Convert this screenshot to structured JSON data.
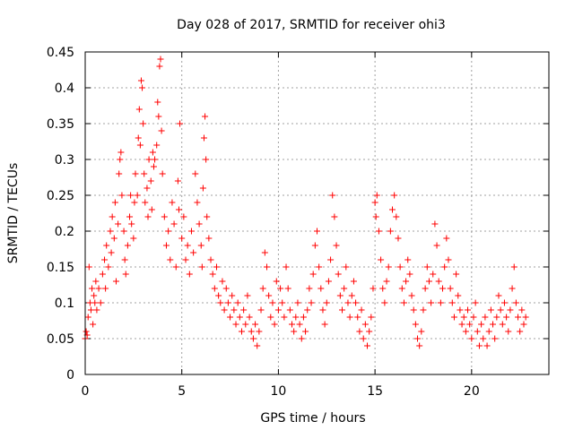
{
  "chart_data": {
    "type": "scatter",
    "title": "Day 028 of 2017, SRMTID for receiver ohi3",
    "xlabel": "GPS time / hours",
    "ylabel": "SRMTID / TECUs",
    "xlim": [
      0,
      24
    ],
    "ylim": [
      0,
      0.45
    ],
    "xticks": [
      0,
      5,
      10,
      15,
      20
    ],
    "yticks": [
      0,
      0.05,
      0.1,
      0.15,
      0.2,
      0.25,
      0.3,
      0.35,
      0.4,
      0.45
    ],
    "xtick_labels": [
      "0",
      "5",
      "10",
      "15",
      "20"
    ],
    "ytick_labels": [
      "0",
      "0.05",
      "0.1",
      "0.15",
      "0.2",
      "0.25",
      "0.3",
      "0.35",
      "0.4",
      "0.45"
    ],
    "grid": true,
    "marker": "plus",
    "color": "#ff0000",
    "series": [
      {
        "name": "SRMTID",
        "points": [
          [
            0.0,
            0.05
          ],
          [
            0.05,
            0.06
          ],
          [
            0.1,
            0.055
          ],
          [
            0.15,
            0.08
          ],
          [
            0.2,
            0.15
          ],
          [
            0.25,
            0.1
          ],
          [
            0.3,
            0.09
          ],
          [
            0.35,
            0.12
          ],
          [
            0.4,
            0.07
          ],
          [
            0.45,
            0.11
          ],
          [
            0.5,
            0.1
          ],
          [
            0.55,
            0.13
          ],
          [
            0.6,
            0.09
          ],
          [
            0.7,
            0.12
          ],
          [
            0.8,
            0.1
          ],
          [
            0.9,
            0.14
          ],
          [
            1.0,
            0.16
          ],
          [
            1.05,
            0.12
          ],
          [
            1.1,
            0.18
          ],
          [
            1.2,
            0.15
          ],
          [
            1.3,
            0.2
          ],
          [
            1.35,
            0.17
          ],
          [
            1.4,
            0.22
          ],
          [
            1.5,
            0.19
          ],
          [
            1.55,
            0.24
          ],
          [
            1.6,
            0.13
          ],
          [
            1.7,
            0.21
          ],
          [
            1.75,
            0.28
          ],
          [
            1.8,
            0.3
          ],
          [
            1.85,
            0.31
          ],
          [
            1.9,
            0.25
          ],
          [
            2.0,
            0.2
          ],
          [
            2.05,
            0.16
          ],
          [
            2.1,
            0.14
          ],
          [
            2.2,
            0.18
          ],
          [
            2.3,
            0.22
          ],
          [
            2.35,
            0.25
          ],
          [
            2.4,
            0.21
          ],
          [
            2.5,
            0.19
          ],
          [
            2.55,
            0.24
          ],
          [
            2.6,
            0.28
          ],
          [
            2.7,
            0.25
          ],
          [
            2.75,
            0.33
          ],
          [
            2.8,
            0.37
          ],
          [
            2.85,
            0.32
          ],
          [
            2.9,
            0.41
          ],
          [
            2.95,
            0.4
          ],
          [
            3.0,
            0.35
          ],
          [
            3.05,
            0.28
          ],
          [
            3.1,
            0.24
          ],
          [
            3.2,
            0.26
          ],
          [
            3.25,
            0.22
          ],
          [
            3.3,
            0.3
          ],
          [
            3.4,
            0.27
          ],
          [
            3.45,
            0.23
          ],
          [
            3.5,
            0.31
          ],
          [
            3.55,
            0.29
          ],
          [
            3.6,
            0.3
          ],
          [
            3.7,
            0.32
          ],
          [
            3.75,
            0.38
          ],
          [
            3.8,
            0.36
          ],
          [
            3.85,
            0.43
          ],
          [
            3.9,
            0.44
          ],
          [
            3.95,
            0.34
          ],
          [
            4.0,
            0.28
          ],
          [
            4.1,
            0.22
          ],
          [
            4.2,
            0.18
          ],
          [
            4.3,
            0.2
          ],
          [
            4.4,
            0.16
          ],
          [
            4.5,
            0.24
          ],
          [
            4.6,
            0.21
          ],
          [
            4.7,
            0.15
          ],
          [
            4.8,
            0.27
          ],
          [
            4.85,
            0.23
          ],
          [
            4.9,
            0.35
          ],
          [
            5.0,
            0.19
          ],
          [
            5.1,
            0.22
          ],
          [
            5.2,
            0.16
          ],
          [
            5.3,
            0.18
          ],
          [
            5.4,
            0.14
          ],
          [
            5.5,
            0.2
          ],
          [
            5.6,
            0.17
          ],
          [
            5.7,
            0.28
          ],
          [
            5.8,
            0.24
          ],
          [
            5.9,
            0.21
          ],
          [
            6.0,
            0.18
          ],
          [
            6.05,
            0.15
          ],
          [
            6.1,
            0.26
          ],
          [
            6.15,
            0.33
          ],
          [
            6.2,
            0.36
          ],
          [
            6.25,
            0.3
          ],
          [
            6.3,
            0.22
          ],
          [
            6.4,
            0.19
          ],
          [
            6.5,
            0.16
          ],
          [
            6.6,
            0.14
          ],
          [
            6.7,
            0.12
          ],
          [
            6.8,
            0.15
          ],
          [
            6.9,
            0.11
          ],
          [
            7.0,
            0.1
          ],
          [
            7.1,
            0.13
          ],
          [
            7.2,
            0.09
          ],
          [
            7.3,
            0.12
          ],
          [
            7.4,
            0.1
          ],
          [
            7.5,
            0.08
          ],
          [
            7.6,
            0.11
          ],
          [
            7.7,
            0.09
          ],
          [
            7.8,
            0.07
          ],
          [
            7.9,
            0.1
          ],
          [
            8.0,
            0.08
          ],
          [
            8.1,
            0.06
          ],
          [
            8.2,
            0.09
          ],
          [
            8.3,
            0.07
          ],
          [
            8.4,
            0.11
          ],
          [
            8.5,
            0.08
          ],
          [
            8.6,
            0.06
          ],
          [
            8.7,
            0.05
          ],
          [
            8.8,
            0.07
          ],
          [
            8.9,
            0.04
          ],
          [
            9.0,
            0.06
          ],
          [
            9.1,
            0.09
          ],
          [
            9.2,
            0.12
          ],
          [
            9.3,
            0.17
          ],
          [
            9.4,
            0.15
          ],
          [
            9.5,
            0.11
          ],
          [
            9.6,
            0.08
          ],
          [
            9.7,
            0.1
          ],
          [
            9.8,
            0.07
          ],
          [
            9.9,
            0.13
          ],
          [
            10.0,
            0.09
          ],
          [
            10.1,
            0.12
          ],
          [
            10.2,
            0.1
          ],
          [
            10.3,
            0.08
          ],
          [
            10.4,
            0.15
          ],
          [
            10.5,
            0.12
          ],
          [
            10.6,
            0.09
          ],
          [
            10.7,
            0.07
          ],
          [
            10.8,
            0.06
          ],
          [
            10.9,
            0.08
          ],
          [
            11.0,
            0.1
          ],
          [
            11.1,
            0.07
          ],
          [
            11.2,
            0.05
          ],
          [
            11.3,
            0.08
          ],
          [
            11.4,
            0.06
          ],
          [
            11.5,
            0.09
          ],
          [
            11.6,
            0.12
          ],
          [
            11.7,
            0.1
          ],
          [
            11.8,
            0.14
          ],
          [
            11.9,
            0.18
          ],
          [
            12.0,
            0.2
          ],
          [
            12.1,
            0.15
          ],
          [
            12.2,
            0.12
          ],
          [
            12.3,
            0.09
          ],
          [
            12.4,
            0.07
          ],
          [
            12.5,
            0.1
          ],
          [
            12.6,
            0.13
          ],
          [
            12.7,
            0.16
          ],
          [
            12.8,
            0.25
          ],
          [
            12.9,
            0.22
          ],
          [
            13.0,
            0.18
          ],
          [
            13.1,
            0.14
          ],
          [
            13.2,
            0.11
          ],
          [
            13.3,
            0.09
          ],
          [
            13.4,
            0.12
          ],
          [
            13.5,
            0.15
          ],
          [
            13.6,
            0.1
          ],
          [
            13.7,
            0.08
          ],
          [
            13.8,
            0.11
          ],
          [
            13.9,
            0.13
          ],
          [
            14.0,
            0.1
          ],
          [
            14.1,
            0.08
          ],
          [
            14.2,
            0.06
          ],
          [
            14.3,
            0.09
          ],
          [
            14.4,
            0.05
          ],
          [
            14.5,
            0.07
          ],
          [
            14.6,
            0.04
          ],
          [
            14.7,
            0.06
          ],
          [
            14.8,
            0.08
          ],
          [
            14.9,
            0.12
          ],
          [
            15.0,
            0.24
          ],
          [
            15.05,
            0.22
          ],
          [
            15.1,
            0.25
          ],
          [
            15.2,
            0.2
          ],
          [
            15.3,
            0.16
          ],
          [
            15.4,
            0.12
          ],
          [
            15.5,
            0.1
          ],
          [
            15.6,
            0.13
          ],
          [
            15.7,
            0.15
          ],
          [
            15.8,
            0.2
          ],
          [
            15.9,
            0.23
          ],
          [
            16.0,
            0.25
          ],
          [
            16.1,
            0.22
          ],
          [
            16.2,
            0.19
          ],
          [
            16.3,
            0.15
          ],
          [
            16.4,
            0.12
          ],
          [
            16.5,
            0.1
          ],
          [
            16.6,
            0.13
          ],
          [
            16.7,
            0.16
          ],
          [
            16.8,
            0.14
          ],
          [
            16.9,
            0.11
          ],
          [
            17.0,
            0.09
          ],
          [
            17.1,
            0.07
          ],
          [
            17.2,
            0.05
          ],
          [
            17.3,
            0.04
          ],
          [
            17.4,
            0.06
          ],
          [
            17.5,
            0.09
          ],
          [
            17.6,
            0.12
          ],
          [
            17.7,
            0.15
          ],
          [
            17.8,
            0.13
          ],
          [
            17.9,
            0.1
          ],
          [
            18.0,
            0.14
          ],
          [
            18.1,
            0.21
          ],
          [
            18.2,
            0.18
          ],
          [
            18.3,
            0.13
          ],
          [
            18.4,
            0.1
          ],
          [
            18.5,
            0.12
          ],
          [
            18.6,
            0.15
          ],
          [
            18.7,
            0.19
          ],
          [
            18.8,
            0.16
          ],
          [
            18.9,
            0.12
          ],
          [
            19.0,
            0.1
          ],
          [
            19.1,
            0.08
          ],
          [
            19.2,
            0.14
          ],
          [
            19.3,
            0.11
          ],
          [
            19.4,
            0.09
          ],
          [
            19.5,
            0.07
          ],
          [
            19.6,
            0.08
          ],
          [
            19.7,
            0.06
          ],
          [
            19.8,
            0.09
          ],
          [
            19.9,
            0.07
          ],
          [
            20.0,
            0.05
          ],
          [
            20.1,
            0.08
          ],
          [
            20.2,
            0.1
          ],
          [
            20.3,
            0.06
          ],
          [
            20.4,
            0.04
          ],
          [
            20.5,
            0.07
          ],
          [
            20.6,
            0.05
          ],
          [
            20.7,
            0.08
          ],
          [
            20.8,
            0.04
          ],
          [
            20.9,
            0.06
          ],
          [
            21.0,
            0.09
          ],
          [
            21.1,
            0.07
          ],
          [
            21.2,
            0.05
          ],
          [
            21.3,
            0.08
          ],
          [
            21.4,
            0.11
          ],
          [
            21.5,
            0.09
          ],
          [
            21.6,
            0.07
          ],
          [
            21.7,
            0.1
          ],
          [
            21.8,
            0.08
          ],
          [
            21.9,
            0.06
          ],
          [
            22.0,
            0.09
          ],
          [
            22.1,
            0.12
          ],
          [
            22.2,
            0.15
          ],
          [
            22.3,
            0.1
          ],
          [
            22.4,
            0.08
          ],
          [
            22.5,
            0.06
          ],
          [
            22.6,
            0.09
          ],
          [
            22.7,
            0.07
          ],
          [
            22.8,
            0.08
          ]
        ]
      }
    ]
  }
}
